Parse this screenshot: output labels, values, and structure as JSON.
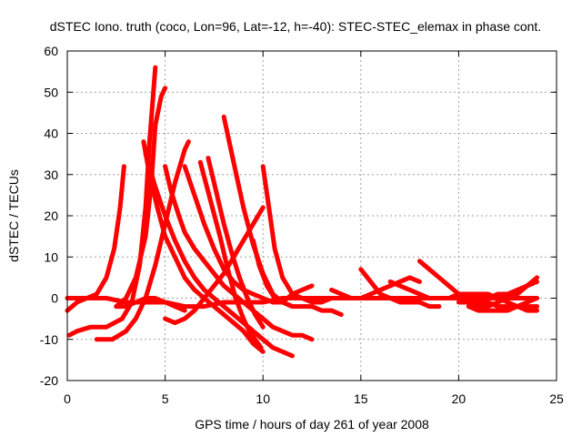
{
  "chart_data": {
    "type": "line",
    "title": "dSTEC Iono. truth (coco, Lon=96, Lat=-12, h=-40): STEC-STEC_elemax in phase cont.",
    "xlabel": "GPS time / hours of day 261 of year 2008",
    "ylabel": "dSTEC  / TECUs",
    "xlim": [
      0,
      25
    ],
    "ylim": [
      -20,
      60
    ],
    "xticks": [
      0,
      5,
      10,
      15,
      20,
      25
    ],
    "yticks": [
      -20,
      -10,
      0,
      10,
      20,
      30,
      40,
      50,
      60
    ],
    "xtick_labels": [
      "0",
      "5",
      "10",
      "15",
      "20",
      "25"
    ],
    "ytick_labels": [
      "-20",
      "-10",
      "0",
      "10",
      "20",
      "30",
      "40",
      "50",
      "60"
    ],
    "grid": true,
    "color": "#ff0000",
    "marker": "plus",
    "series": [
      {
        "x": [
          0,
          0.5,
          1.0,
          1.5,
          2.0,
          2.4,
          2.7,
          2.9
        ],
        "y": [
          -3,
          -1,
          0,
          1,
          5,
          12,
          22,
          32
        ]
      },
      {
        "x": [
          0.1,
          0.5,
          1.2,
          2.0,
          2.8,
          3.3,
          3.7,
          4.0,
          4.2,
          4.4,
          4.5
        ],
        "y": [
          -9,
          -8,
          -7,
          -7,
          -5,
          -1,
          8,
          22,
          38,
          50,
          56
        ]
      },
      {
        "x": [
          2.5,
          3.0,
          3.5,
          4.0,
          4.3,
          4.5,
          4.8,
          5.0
        ],
        "y": [
          -2,
          0,
          5,
          15,
          28,
          42,
          49,
          51
        ]
      },
      {
        "x": [
          1.5,
          2.3,
          3.0,
          3.5,
          4.0,
          4.5,
          5.0,
          5.5,
          6.0,
          6.2
        ],
        "y": [
          -10,
          -10,
          -8,
          -5,
          0,
          8,
          18,
          28,
          36,
          38
        ]
      },
      {
        "x": [
          3.9,
          4.2,
          4.6,
          5.0,
          5.5,
          6.0,
          6.5,
          7.0,
          7.5,
          8.0,
          8.5,
          9.0,
          9.5,
          10.0
        ],
        "y": [
          38,
          30,
          22,
          15,
          10,
          5,
          2,
          0,
          -2,
          -4,
          -6,
          -8,
          -11,
          -13
        ]
      },
      {
        "x": [
          4.0,
          4.5,
          5.0,
          5.5,
          6.0,
          6.5,
          7.0,
          7.5,
          8.0,
          8.5,
          9.0,
          9.5,
          10.0,
          10.5,
          11.0,
          11.5
        ],
        "y": [
          35,
          27,
          20,
          14,
          9,
          5,
          2,
          0,
          -2,
          -4,
          -6,
          -8,
          -10,
          -12,
          -13,
          -14
        ]
      },
      {
        "x": [
          5.0,
          5.3,
          5.7,
          6.0,
          6.5,
          7.0,
          7.5,
          8.0,
          8.5,
          9.0,
          9.5,
          10.0,
          10.5,
          11.0,
          11.5,
          12.0,
          12.5
        ],
        "y": [
          32,
          26,
          20,
          16,
          12,
          9,
          6,
          3,
          1,
          -1,
          -3,
          -5,
          -7,
          -8,
          -9,
          -9,
          -10
        ]
      },
      {
        "x": [
          6.0,
          6.5,
          7.0,
          7.5,
          8.0,
          8.5,
          9.0,
          9.5,
          10.0,
          10.5,
          11.0,
          11.5,
          12.0,
          12.5,
          13.0,
          13.5,
          14.0
        ],
        "y": [
          32,
          25,
          18,
          12,
          7,
          4,
          2,
          1,
          0,
          -1,
          -1,
          -2,
          -2,
          -2,
          -3,
          -3,
          -4
        ]
      },
      {
        "x": [
          6.8,
          7.3,
          7.8,
          8.2,
          8.6,
          9.0,
          9.3,
          9.6,
          9.9
        ],
        "y": [
          33,
          24,
          15,
          7,
          0,
          -5,
          -8,
          -10,
          -12
        ]
      },
      {
        "x": [
          7.2,
          7.6,
          8.0,
          8.4,
          8.8,
          9.2,
          9.6,
          10.0
        ],
        "y": [
          34,
          26,
          18,
          11,
          5,
          0,
          -4,
          -7
        ]
      },
      {
        "x": [
          8.0,
          8.5,
          9.0,
          9.5,
          10.0,
          10.5,
          11.0,
          11.5
        ],
        "y": [
          44,
          33,
          22,
          13,
          6,
          1,
          -1,
          -2
        ]
      },
      {
        "x": [
          5.0,
          5.5,
          6.0,
          6.5,
          7.0,
          7.5,
          8.0,
          8.5,
          9.0,
          9.5,
          10.0
        ],
        "y": [
          -5,
          -6,
          -5,
          -3,
          0,
          3,
          6,
          10,
          14,
          18,
          22
        ]
      },
      {
        "x": [
          9.5,
          9.8,
          10.2,
          10.6,
          11.0,
          11.5,
          12.0,
          12.5
        ],
        "y": [
          14,
          8,
          3,
          0,
          -1,
          1,
          2,
          3
        ]
      },
      {
        "x": [
          10.0,
          10.3,
          10.6,
          11.0,
          11.5,
          12.0,
          12.5,
          13.0,
          13.5,
          14.0,
          14.5,
          15.0
        ],
        "y": [
          32,
          22,
          12,
          5,
          1,
          0,
          -1,
          -1,
          0,
          0,
          0,
          0
        ]
      },
      {
        "x": [
          15.0,
          15.5,
          16.0,
          16.5,
          17.0,
          17.5,
          18.0,
          18.5,
          19.0
        ],
        "y": [
          7,
          4,
          1,
          0,
          -1,
          -1,
          -1,
          -2,
          -2
        ]
      },
      {
        "x": [
          16.5,
          17.0,
          17.5,
          18.0,
          18.5,
          19.0,
          19.5,
          20.0,
          20.5,
          21.0,
          21.5,
          22.0,
          22.5,
          23.0,
          23.5,
          24.0
        ],
        "y": [
          4,
          3,
          2,
          1,
          0,
          0,
          0,
          1,
          1,
          1,
          1,
          0,
          -1,
          -2,
          -3,
          -3
        ]
      },
      {
        "x": [
          18.0,
          18.5,
          19.0,
          19.5,
          20.0,
          20.5,
          21.0,
          21.5,
          22.0,
          22.5,
          23.0,
          23.5,
          24.0
        ],
        "y": [
          9,
          7,
          5,
          3,
          1,
          0,
          -1,
          -1,
          -2,
          -2,
          -2,
          -2,
          -2
        ]
      },
      {
        "x": [
          13.5,
          14.0,
          14.5,
          15.0,
          15.5,
          16.0,
          16.5,
          17.0,
          17.5,
          18.0
        ],
        "y": [
          2,
          1,
          0,
          0,
          1,
          2,
          3,
          4,
          5,
          4
        ]
      },
      {
        "x": [
          19.0,
          19.5,
          20.0,
          20.5,
          21.0,
          21.5,
          22.0,
          22.5,
          23.0,
          23.5,
          24.0
        ],
        "y": [
          0,
          0,
          0,
          0,
          0,
          0,
          1,
          1,
          2,
          3,
          4
        ]
      },
      {
        "x": [
          20.0,
          20.5,
          21.0,
          21.5,
          22.0,
          22.5,
          23.0,
          23.5,
          24.0
        ],
        "y": [
          -1,
          -1,
          -2,
          -2,
          -1,
          0,
          1,
          3,
          5
        ]
      },
      {
        "x": [
          20.5,
          21.0,
          21.5,
          22.0,
          22.5,
          23.0,
          23.5,
          24.0
        ],
        "y": [
          -2,
          -3,
          -3,
          -3,
          -3,
          -2,
          -1,
          0
        ]
      },
      {
        "x": [
          0,
          1,
          2,
          3,
          4,
          5,
          6,
          7,
          8,
          9,
          10,
          11,
          12,
          13,
          14,
          15,
          16,
          17,
          18,
          19,
          20,
          21,
          22,
          23,
          24
        ],
        "y": [
          0,
          0,
          0,
          -1,
          -1,
          -1,
          -2,
          -2,
          -1,
          -1,
          -1,
          0,
          0,
          0,
          0,
          0,
          0,
          0,
          0,
          0,
          0,
          0,
          0,
          0,
          0
        ]
      },
      {
        "x": [
          2.5,
          3.0,
          3.5,
          4.0,
          4.5,
          5.0,
          5.5,
          6.0
        ],
        "y": [
          -2,
          -2,
          -1,
          0,
          0,
          -1,
          -2,
          -3
        ]
      }
    ]
  }
}
